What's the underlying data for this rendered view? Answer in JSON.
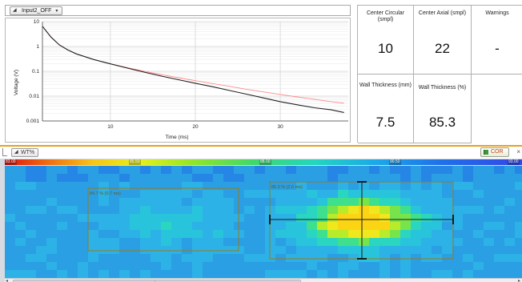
{
  "top": {
    "channel_dropdown": "Input2_OFF"
  },
  "chart_data": {
    "type": "line",
    "xlabel": "Time (ms)",
    "ylabel": "Voltage (V)",
    "xlim": [
      2,
      38
    ],
    "ylim": [
      0.001,
      10
    ],
    "y_scale": "log",
    "x_ticks": [
      "10",
      "20",
      "30"
    ],
    "y_ticks": [
      "10",
      "1",
      "0.1",
      "0.01",
      "0.001"
    ],
    "grid": true,
    "series": [
      {
        "color": "#222222",
        "x": [
          2,
          3,
          4,
          5,
          6,
          8,
          10,
          12,
          14,
          16,
          18,
          20,
          22,
          24,
          26,
          28,
          30,
          32,
          34,
          36,
          37.5
        ],
        "y": [
          6.5,
          2.4,
          1.15,
          0.72,
          0.5,
          0.3,
          0.2,
          0.135,
          0.092,
          0.064,
          0.046,
          0.033,
          0.024,
          0.017,
          0.012,
          0.0085,
          0.006,
          0.0045,
          0.0034,
          0.0028,
          0.0022
        ]
      },
      {
        "color": "#ff8a8a",
        "x": [
          2,
          3,
          4,
          5,
          6,
          8,
          10,
          12,
          14,
          16,
          18,
          20,
          22,
          24,
          26,
          28,
          30,
          32,
          34,
          36,
          37.5
        ],
        "y": [
          6.5,
          2.4,
          1.15,
          0.72,
          0.5,
          0.3,
          0.2,
          0.14,
          0.1,
          0.073,
          0.055,
          0.042,
          0.032,
          0.025,
          0.019,
          0.0148,
          0.0117,
          0.0093,
          0.0075,
          0.006,
          0.0052
        ]
      }
    ]
  },
  "readouts": {
    "center_circular": {
      "label": "Center Circular (smpl)",
      "value": "10"
    },
    "center_axial": {
      "label": "Center Axial (smpl)",
      "value": "22"
    },
    "warnings": {
      "label": "Warnings",
      "value": "-"
    },
    "wall_mm": {
      "label": "Wall Thickness (mm)",
      "value": "7.5"
    },
    "wall_pct": {
      "label": "Wall Thickness (%)",
      "value": "85.3"
    }
  },
  "bottom": {
    "wt_dropdown": "WT%",
    "cor_button": "COR",
    "scale_ticks": [
      "83.00",
      "85.50",
      "88.00",
      "90.50",
      "93.00"
    ],
    "region1_label": "84.7 % (0.7 ms)",
    "region2_label": "85.3 % (2.6 ms)",
    "colors": {
      "background": "#2a9fe4",
      "hot": "#f0e81c",
      "region_frame": "#9a7a1a",
      "crosshair": "#1a1a1a"
    }
  }
}
